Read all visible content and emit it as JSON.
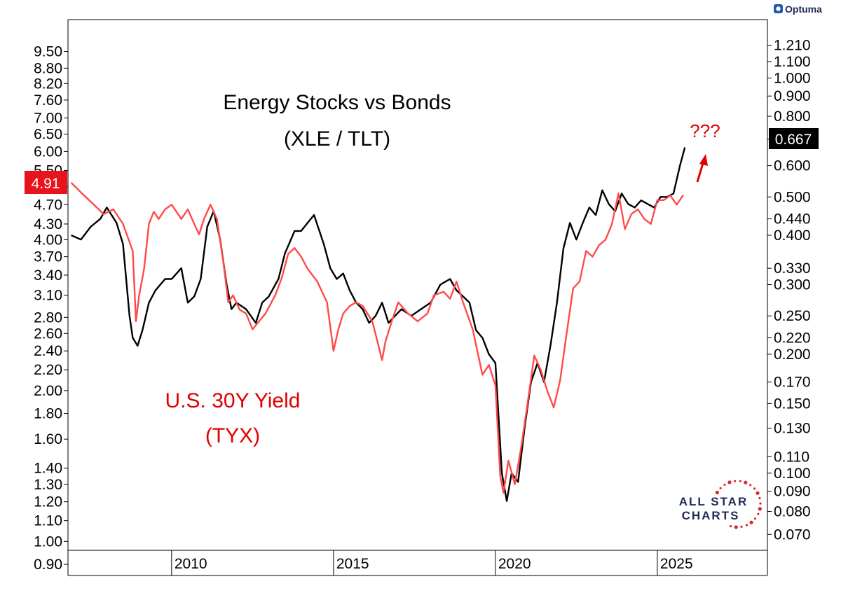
{
  "branding": {
    "optuma_label": "Optuma",
    "allstar_line1": "ALL STAR",
    "allstar_line2": "CHARTS"
  },
  "colors": {
    "ratio_line": "#000000",
    "yield_line": "#ff4a4a",
    "annotation": "#e00000",
    "yield_badge": "#e8141c",
    "ratio_badge": "#000000",
    "brand_navy": "#1f2a5a",
    "brand_star": "#d8262e"
  },
  "chart_data": {
    "type": "line",
    "title": "Energy Stocks vs Bonds",
    "subtitle": "(XLE / TLT)",
    "x_axis": {
      "range": [
        2006.8,
        2028.4
      ],
      "ticks": [
        "2010",
        "2015",
        "2020",
        "2025"
      ],
      "tick_values": [
        2010,
        2015,
        2020,
        2025
      ]
    },
    "left_axis": {
      "scale": "log",
      "range": [
        0.96,
        11.0
      ],
      "tick_labels": [
        "9.50",
        "8.80",
        "8.20",
        "7.60",
        "7.00",
        "6.50",
        "6.00",
        "5.50",
        "5.10",
        "4.70",
        "4.30",
        "4.00",
        "3.70",
        "3.40",
        "3.10",
        "2.80",
        "2.60",
        "2.40",
        "2.20",
        "2.00",
        "1.80",
        "1.60",
        "1.40",
        "1.30",
        "1.20",
        "1.10",
        "1.00",
        "0.90"
      ]
    },
    "right_axis": {
      "scale": "log",
      "range": [
        0.0638,
        1.405
      ],
      "tick_labels": [
        "1.210",
        "1.100",
        "1.000",
        "0.900",
        "0.800",
        "0.700",
        "0.600",
        "0.500",
        "0.440",
        "0.400",
        "0.330",
        "0.300",
        "0.250",
        "0.220",
        "0.200",
        "0.170",
        "0.150",
        "0.130",
        "0.110",
        "0.100",
        "0.090",
        "0.080",
        "0.070"
      ]
    },
    "series": [
      {
        "name": "U.S. 30Y Yield (TYX)",
        "label_line1": "U.S. 30Y Yield",
        "label_line2": "(TYX)",
        "axis": "left",
        "last_value": "4.91",
        "x": [
          2006.9,
          2007.3,
          2007.6,
          2007.9,
          2008.2,
          2008.5,
          2008.8,
          2008.9,
          2009.0,
          2009.15,
          2009.3,
          2009.45,
          2009.6,
          2009.8,
          2010.0,
          2010.3,
          2010.5,
          2010.7,
          2010.85,
          2011.0,
          2011.2,
          2011.4,
          2011.6,
          2011.75,
          2011.9,
          2012.1,
          2012.3,
          2012.5,
          2012.7,
          2012.9,
          2013.2,
          2013.4,
          2013.6,
          2013.8,
          2014.0,
          2014.2,
          2014.5,
          2014.8,
          2015.0,
          2015.15,
          2015.3,
          2015.5,
          2015.7,
          2015.9,
          2016.2,
          2016.5,
          2016.6,
          2016.8,
          2017.0,
          2017.3,
          2017.6,
          2017.9,
          2018.1,
          2018.4,
          2018.6,
          2018.8,
          2019.0,
          2019.3,
          2019.6,
          2019.8,
          2020.0,
          2020.15,
          2020.25,
          2020.4,
          2020.6,
          2020.8,
          2021.0,
          2021.2,
          2021.4,
          2021.6,
          2021.8,
          2022.0,
          2022.2,
          2022.4,
          2022.6,
          2022.8,
          2023.0,
          2023.2,
          2023.4,
          2023.6,
          2023.8,
          2024.0,
          2024.2,
          2024.4,
          2024.6,
          2024.8,
          2025.0,
          2025.2,
          2025.4,
          2025.6,
          2025.8
        ],
        "values": [
          5.2,
          4.9,
          4.7,
          4.5,
          4.6,
          4.3,
          3.8,
          2.75,
          3.1,
          3.5,
          4.3,
          4.55,
          4.4,
          4.6,
          4.7,
          4.4,
          4.6,
          4.3,
          4.1,
          4.4,
          4.7,
          4.4,
          3.6,
          3.0,
          3.1,
          2.9,
          2.85,
          2.65,
          2.75,
          2.85,
          3.1,
          3.35,
          3.75,
          3.85,
          3.7,
          3.5,
          3.3,
          3.0,
          2.4,
          2.65,
          2.85,
          2.95,
          3.0,
          2.95,
          2.75,
          2.3,
          2.5,
          2.75,
          3.0,
          2.85,
          2.75,
          2.85,
          3.1,
          3.15,
          3.05,
          3.3,
          3.0,
          2.65,
          2.15,
          2.25,
          2.05,
          1.35,
          1.25,
          1.45,
          1.3,
          1.55,
          1.9,
          2.35,
          2.2,
          2.0,
          1.85,
          2.1,
          2.6,
          3.2,
          3.3,
          3.8,
          3.7,
          3.9,
          4.0,
          4.3,
          4.95,
          4.2,
          4.5,
          4.6,
          4.4,
          4.3,
          4.8,
          4.8,
          4.9,
          4.7,
          4.91
        ]
      },
      {
        "name": "Energy Stocks vs Bonds (XLE / TLT)",
        "axis": "right",
        "last_value": "0.667",
        "x": [
          2006.9,
          2007.2,
          2007.5,
          2007.8,
          2008.0,
          2008.3,
          2008.5,
          2008.7,
          2008.8,
          2008.95,
          2009.1,
          2009.3,
          2009.5,
          2009.8,
          2010.0,
          2010.3,
          2010.5,
          2010.7,
          2010.9,
          2011.1,
          2011.3,
          2011.5,
          2011.7,
          2011.85,
          2012.0,
          2012.3,
          2012.6,
          2012.8,
          2013.0,
          2013.3,
          2013.5,
          2013.8,
          2014.0,
          2014.2,
          2014.4,
          2014.7,
          2014.9,
          2015.1,
          2015.3,
          2015.5,
          2015.7,
          2015.9,
          2016.1,
          2016.3,
          2016.5,
          2016.7,
          2016.9,
          2017.1,
          2017.4,
          2017.7,
          2018.0,
          2018.3,
          2018.6,
          2018.8,
          2019.0,
          2019.2,
          2019.4,
          2019.6,
          2019.8,
          2020.0,
          2020.2,
          2020.35,
          2020.5,
          2020.7,
          2020.9,
          2021.1,
          2021.3,
          2021.5,
          2021.7,
          2021.9,
          2022.1,
          2022.3,
          2022.5,
          2022.7,
          2022.9,
          2023.1,
          2023.3,
          2023.5,
          2023.7,
          2023.9,
          2024.1,
          2024.3,
          2024.5,
          2024.7,
          2024.9,
          2025.1,
          2025.3,
          2025.5,
          2025.7,
          2025.85
        ],
        "values": [
          0.4,
          0.39,
          0.42,
          0.44,
          0.47,
          0.43,
          0.38,
          0.25,
          0.22,
          0.21,
          0.23,
          0.27,
          0.29,
          0.31,
          0.31,
          0.33,
          0.27,
          0.28,
          0.31,
          0.42,
          0.46,
          0.39,
          0.3,
          0.26,
          0.27,
          0.26,
          0.24,
          0.27,
          0.28,
          0.31,
          0.36,
          0.41,
          0.41,
          0.43,
          0.45,
          0.38,
          0.33,
          0.31,
          0.32,
          0.29,
          0.27,
          0.26,
          0.24,
          0.25,
          0.27,
          0.24,
          0.25,
          0.26,
          0.25,
          0.26,
          0.27,
          0.3,
          0.31,
          0.29,
          0.28,
          0.27,
          0.23,
          0.22,
          0.2,
          0.19,
          0.1,
          0.085,
          0.1,
          0.095,
          0.13,
          0.17,
          0.19,
          0.17,
          0.21,
          0.27,
          0.37,
          0.43,
          0.39,
          0.43,
          0.47,
          0.45,
          0.52,
          0.48,
          0.46,
          0.51,
          0.48,
          0.47,
          0.49,
          0.48,
          0.47,
          0.5,
          0.5,
          0.51,
          0.6,
          0.667
        ]
      }
    ],
    "annotations": {
      "question": "???"
    }
  }
}
